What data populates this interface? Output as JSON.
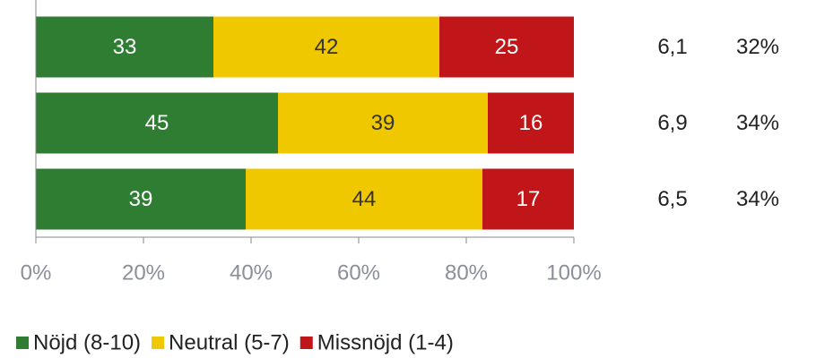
{
  "chart_data": {
    "type": "stacked_bar_horizontal",
    "categories": [
      null,
      null,
      null
    ],
    "series": [
      {
        "name": "Nöjd (8-10)",
        "color": "#2e7d32",
        "label_color": "#ffffff",
        "values": [
          33,
          45,
          39
        ]
      },
      {
        "name": "Neutral (5-7)",
        "color": "#f0c800",
        "label_color": "#333333",
        "values": [
          42,
          39,
          44
        ]
      },
      {
        "name": "Missnöjd (1-4)",
        "color": "#c0161a",
        "label_color": "#ffffff",
        "values": [
          25,
          16,
          17
        ]
      }
    ],
    "xlim": [
      0,
      100
    ],
    "xticks": [
      {
        "value": 0,
        "label": "0%"
      },
      {
        "value": 20,
        "label": "20%"
      },
      {
        "value": 40,
        "label": "40%"
      },
      {
        "value": 60,
        "label": "60%"
      },
      {
        "value": 80,
        "label": "80%"
      },
      {
        "value": 100,
        "label": "100%"
      }
    ],
    "extra_columns": [
      [
        "6,1",
        "6,9",
        "6,5"
      ],
      [
        "32%",
        "34%",
        "34%"
      ]
    ],
    "legend": "bottom"
  }
}
